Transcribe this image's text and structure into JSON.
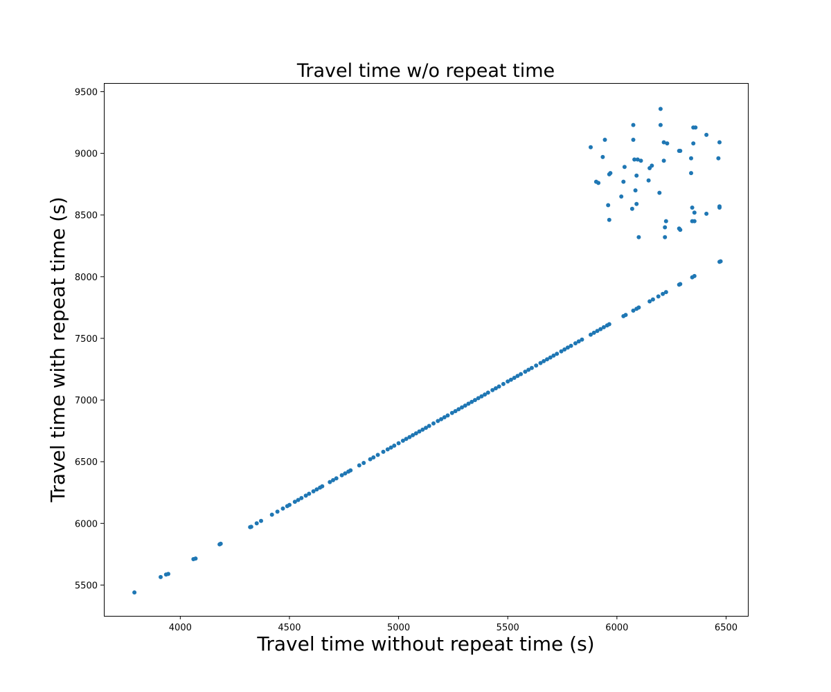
{
  "chart_data": {
    "type": "scatter",
    "title": "Travel time w/o repeat time",
    "xlabel": "Travel time without repeat time (s)",
    "ylabel": "Travel time with repeat time (s)",
    "xlim": [
      3650,
      6600
    ],
    "ylim": [
      5250,
      9570
    ],
    "xticks": [
      4000,
      4500,
      5000,
      5500,
      6000,
      6500
    ],
    "yticks": [
      5500,
      6000,
      6500,
      7000,
      7500,
      8000,
      8500,
      9000,
      9500
    ],
    "grid": false,
    "legend": "none",
    "marker_color": "#1f77b4",
    "series": [
      {
        "name": "",
        "points": [
          [
            3790,
            5440
          ],
          [
            3910,
            5565
          ],
          [
            3935,
            5585
          ],
          [
            3945,
            5590
          ],
          [
            4060,
            5710
          ],
          [
            4070,
            5715
          ],
          [
            4180,
            5830
          ],
          [
            4185,
            5835
          ],
          [
            4320,
            5970
          ],
          [
            4325,
            5972
          ],
          [
            4350,
            6000
          ],
          [
            4370,
            6020
          ],
          [
            4420,
            6070
          ],
          [
            4445,
            6095
          ],
          [
            4470,
            6120
          ],
          [
            4490,
            6140
          ],
          [
            4500,
            6150
          ],
          [
            4525,
            6175
          ],
          [
            4540,
            6190
          ],
          [
            4555,
            6205
          ],
          [
            4575,
            6225
          ],
          [
            4590,
            6240
          ],
          [
            4610,
            6260
          ],
          [
            4625,
            6275
          ],
          [
            4640,
            6290
          ],
          [
            4650,
            6300
          ],
          [
            4685,
            6335
          ],
          [
            4700,
            6350
          ],
          [
            4715,
            6365
          ],
          [
            4740,
            6390
          ],
          [
            4755,
            6405
          ],
          [
            4770,
            6420
          ],
          [
            4780,
            6430
          ],
          [
            4820,
            6470
          ],
          [
            4840,
            6490
          ],
          [
            4870,
            6520
          ],
          [
            4885,
            6535
          ],
          [
            4905,
            6555
          ],
          [
            4930,
            6580
          ],
          [
            4950,
            6600
          ],
          [
            4965,
            6615
          ],
          [
            4980,
            6630
          ],
          [
            5000,
            6650
          ],
          [
            5020,
            6670
          ],
          [
            5035,
            6685
          ],
          [
            5050,
            6700
          ],
          [
            5065,
            6715
          ],
          [
            5080,
            6730
          ],
          [
            5095,
            6745
          ],
          [
            5110,
            6760
          ],
          [
            5125,
            6775
          ],
          [
            5140,
            6790
          ],
          [
            5160,
            6810
          ],
          [
            5180,
            6830
          ],
          [
            5195,
            6845
          ],
          [
            5210,
            6860
          ],
          [
            5225,
            6875
          ],
          [
            5245,
            6895
          ],
          [
            5260,
            6910
          ],
          [
            5275,
            6925
          ],
          [
            5290,
            6940
          ],
          [
            5305,
            6955
          ],
          [
            5320,
            6970
          ],
          [
            5335,
            6985
          ],
          [
            5350,
            7000
          ],
          [
            5365,
            7015
          ],
          [
            5380,
            7030
          ],
          [
            5395,
            7045
          ],
          [
            5410,
            7060
          ],
          [
            5430,
            7080
          ],
          [
            5445,
            7095
          ],
          [
            5460,
            7110
          ],
          [
            5480,
            7130
          ],
          [
            5500,
            7150
          ],
          [
            5515,
            7165
          ],
          [
            5530,
            7180
          ],
          [
            5545,
            7195
          ],
          [
            5560,
            7210
          ],
          [
            5580,
            7230
          ],
          [
            5595,
            7245
          ],
          [
            5610,
            7260
          ],
          [
            5630,
            7280
          ],
          [
            5650,
            7300
          ],
          [
            5665,
            7315
          ],
          [
            5680,
            7330
          ],
          [
            5695,
            7345
          ],
          [
            5710,
            7360
          ],
          [
            5725,
            7375
          ],
          [
            5745,
            7395
          ],
          [
            5760,
            7410
          ],
          [
            5775,
            7425
          ],
          [
            5790,
            7440
          ],
          [
            5810,
            7460
          ],
          [
            5825,
            7475
          ],
          [
            5840,
            7490
          ],
          [
            5880,
            7530
          ],
          [
            5895,
            7545
          ],
          [
            5910,
            7560
          ],
          [
            5925,
            7575
          ],
          [
            5940,
            7590
          ],
          [
            5955,
            7605
          ],
          [
            5965,
            7615
          ],
          [
            6030,
            7680
          ],
          [
            6040,
            7690
          ],
          [
            6075,
            7725
          ],
          [
            6090,
            7740
          ],
          [
            6100,
            7750
          ],
          [
            6150,
            7800
          ],
          [
            6165,
            7815
          ],
          [
            6190,
            7840
          ],
          [
            6210,
            7860
          ],
          [
            6225,
            7875
          ],
          [
            6285,
            7935
          ],
          [
            6290,
            7940
          ],
          [
            6345,
            7995
          ],
          [
            6355,
            8005
          ],
          [
            6470,
            8120
          ],
          [
            6475,
            8125
          ],
          [
            5880,
            9050
          ],
          [
            5905,
            8770
          ],
          [
            5915,
            8760
          ],
          [
            5935,
            8970
          ],
          [
            5945,
            9110
          ],
          [
            5960,
            8580
          ],
          [
            5965,
            8460
          ],
          [
            5965,
            8830
          ],
          [
            5970,
            8840
          ],
          [
            6020,
            8650
          ],
          [
            6030,
            8770
          ],
          [
            6035,
            8890
          ],
          [
            6070,
            8550
          ],
          [
            6075,
            9110
          ],
          [
            6075,
            9230
          ],
          [
            6080,
            8950
          ],
          [
            6085,
            8700
          ],
          [
            6090,
            8820
          ],
          [
            6090,
            8590
          ],
          [
            6095,
            8950
          ],
          [
            6100,
            8320
          ],
          [
            6110,
            8940
          ],
          [
            6145,
            8780
          ],
          [
            6150,
            8880
          ],
          [
            6160,
            8900
          ],
          [
            6195,
            8680
          ],
          [
            6200,
            9230
          ],
          [
            6200,
            9360
          ],
          [
            6215,
            8940
          ],
          [
            6215,
            9090
          ],
          [
            6220,
            8320
          ],
          [
            6220,
            8400
          ],
          [
            6225,
            8450
          ],
          [
            6230,
            9080
          ],
          [
            6285,
            8390
          ],
          [
            6290,
            8380
          ],
          [
            6285,
            9020
          ],
          [
            6290,
            9020
          ],
          [
            6340,
            8840
          ],
          [
            6340,
            8960
          ],
          [
            6345,
            8450
          ],
          [
            6345,
            8560
          ],
          [
            6350,
            9210
          ],
          [
            6350,
            9080
          ],
          [
            6355,
            8520
          ],
          [
            6355,
            8450
          ],
          [
            6360,
            9210
          ],
          [
            6410,
            9150
          ],
          [
            6410,
            8510
          ],
          [
            6465,
            8960
          ],
          [
            6470,
            9090
          ],
          [
            6470,
            8560
          ],
          [
            6470,
            8570
          ]
        ]
      }
    ]
  }
}
